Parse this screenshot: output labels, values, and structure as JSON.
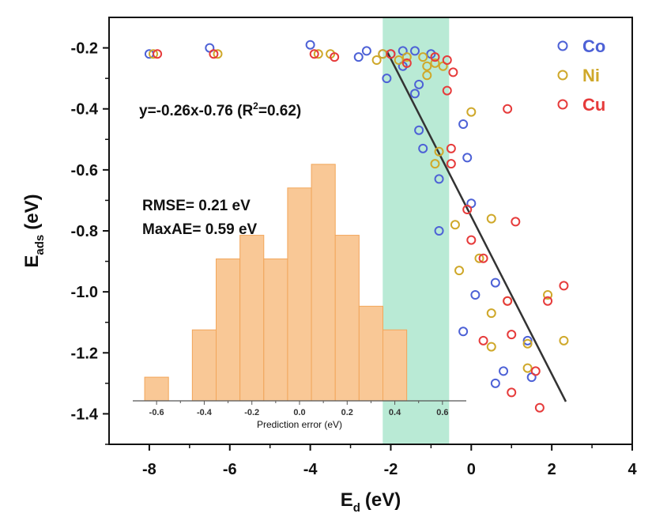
{
  "chart_data": {
    "type": "scatter",
    "xlabel": "E",
    "xlabel_sub": "d",
    "xlabel_unit": "(eV)",
    "ylabel": "E",
    "ylabel_sub": "ads",
    "ylabel_unit": "(eV)",
    "xlim": [
      -9.0,
      4.0
    ],
    "ylim": [
      -1.5,
      -0.1
    ],
    "xticks": [
      -8,
      -6,
      -4,
      -2,
      0,
      2,
      4
    ],
    "yticks": [
      -0.2,
      -0.4,
      -0.6,
      -0.8,
      -1.0,
      -1.2,
      -1.4
    ],
    "xtick_labels": [
      "-8",
      "-6",
      "-4",
      "-2",
      "0",
      "2",
      "4"
    ],
    "ytick_labels": [
      "-0.2",
      "-0.4",
      "-0.6",
      "-0.8",
      "-1.0",
      "-1.2",
      "-1.4"
    ],
    "highlight_band": {
      "x_range": [
        -2.2,
        -0.55
      ],
      "color": "#7fd9b2"
    },
    "fit_line": {
      "label_prefix": "y=-0.26x-0.76 (R",
      "label_sup": "2",
      "label_suffix": "=0.62)",
      "from": [
        -2.1,
        -0.21
      ],
      "to": [
        2.35,
        -1.36
      ],
      "color": "#333333"
    },
    "legend": [
      {
        "name": "Co",
        "color": "#4d61d6"
      },
      {
        "name": "Ni",
        "color": "#cfa82a"
      },
      {
        "name": "Cu",
        "color": "#e63b3b"
      }
    ],
    "series": [
      {
        "name": "Co",
        "color": "#4d61d6",
        "points": [
          [
            -8.0,
            -0.22
          ],
          [
            -6.5,
            -0.2
          ],
          [
            -4.0,
            -0.19
          ],
          [
            -2.8,
            -0.23
          ],
          [
            -2.6,
            -0.21
          ],
          [
            -2.2,
            -0.22
          ],
          [
            -2.0,
            -0.22
          ],
          [
            -1.7,
            -0.21
          ],
          [
            -1.4,
            -0.21
          ],
          [
            -1.0,
            -0.22
          ],
          [
            -2.1,
            -0.3
          ],
          [
            -1.7,
            -0.26
          ],
          [
            -1.3,
            -0.32
          ],
          [
            -1.4,
            -0.35
          ],
          [
            -1.3,
            -0.47
          ],
          [
            -1.2,
            -0.53
          ],
          [
            -0.8,
            -0.63
          ],
          [
            -0.8,
            -0.8
          ],
          [
            -0.2,
            -0.45
          ],
          [
            -0.1,
            -0.56
          ],
          [
            0.0,
            -0.71
          ],
          [
            0.1,
            -1.01
          ],
          [
            -0.2,
            -1.13
          ],
          [
            0.6,
            -0.97
          ],
          [
            0.8,
            -1.26
          ],
          [
            0.6,
            -1.3
          ],
          [
            1.4,
            -1.16
          ],
          [
            1.5,
            -1.28
          ]
        ]
      },
      {
        "name": "Ni",
        "color": "#cfa82a",
        "points": [
          [
            -7.9,
            -0.22
          ],
          [
            -6.3,
            -0.22
          ],
          [
            -3.8,
            -0.22
          ],
          [
            -3.5,
            -0.22
          ],
          [
            -2.35,
            -0.24
          ],
          [
            -2.2,
            -0.22
          ],
          [
            -1.8,
            -0.24
          ],
          [
            -1.6,
            -0.23
          ],
          [
            -1.2,
            -0.23
          ],
          [
            -1.1,
            -0.26
          ],
          [
            -0.9,
            -0.25
          ],
          [
            -0.7,
            -0.26
          ],
          [
            -1.1,
            -0.29
          ],
          [
            -0.9,
            -0.58
          ],
          [
            -0.8,
            -0.54
          ],
          [
            -0.4,
            -0.78
          ],
          [
            -0.3,
            -0.93
          ],
          [
            0.0,
            -0.41
          ],
          [
            0.5,
            -0.76
          ],
          [
            0.2,
            -0.89
          ],
          [
            0.5,
            -1.07
          ],
          [
            0.9,
            -1.03
          ],
          [
            0.5,
            -1.18
          ],
          [
            1.4,
            -1.17
          ],
          [
            1.4,
            -1.25
          ],
          [
            1.9,
            -1.01
          ],
          [
            2.3,
            -1.16
          ]
        ]
      },
      {
        "name": "Cu",
        "color": "#e63b3b",
        "points": [
          [
            -7.8,
            -0.22
          ],
          [
            -6.4,
            -0.22
          ],
          [
            -3.9,
            -0.22
          ],
          [
            -3.4,
            -0.23
          ],
          [
            -2.0,
            -0.22
          ],
          [
            -1.6,
            -0.25
          ],
          [
            -0.9,
            -0.23
          ],
          [
            -0.6,
            -0.24
          ],
          [
            -0.6,
            -0.34
          ],
          [
            -0.45,
            -0.28
          ],
          [
            -0.5,
            -0.53
          ],
          [
            -0.5,
            -0.58
          ],
          [
            -0.1,
            -0.73
          ],
          [
            0.0,
            -0.83
          ],
          [
            0.3,
            -0.89
          ],
          [
            0.3,
            -1.16
          ],
          [
            0.9,
            -0.4
          ],
          [
            1.1,
            -0.77
          ],
          [
            0.9,
            -1.03
          ],
          [
            1.0,
            -1.14
          ],
          [
            1.0,
            -1.33
          ],
          [
            1.6,
            -1.26
          ],
          [
            1.7,
            -1.38
          ],
          [
            1.9,
            -1.03
          ],
          [
            2.3,
            -0.98
          ]
        ]
      }
    ],
    "inset": {
      "type": "bar",
      "xlabel": "Prediction error (eV)",
      "xlim": [
        -0.7,
        0.7
      ],
      "ylim": [
        0,
        12
      ],
      "xticks": [
        -0.6,
        -0.4,
        -0.2,
        0.0,
        0.2,
        0.4,
        0.6
      ],
      "xtick_labels": [
        "-0.6",
        "-0.4",
        "-0.2",
        "0.0",
        "0.2",
        "0.4",
        "0.6"
      ],
      "bin_width": 0.1,
      "bins": [
        {
          "center": -0.6,
          "count": 1
        },
        {
          "center": -0.4,
          "count": 3
        },
        {
          "center": -0.3,
          "count": 6
        },
        {
          "center": -0.2,
          "count": 7
        },
        {
          "center": -0.1,
          "count": 6
        },
        {
          "center": 0.0,
          "count": 9
        },
        {
          "center": 0.1,
          "count": 10
        },
        {
          "center": 0.2,
          "count": 7
        },
        {
          "center": 0.3,
          "count": 4
        },
        {
          "center": 0.4,
          "count": 3
        }
      ],
      "bar_color": "#f9c896",
      "bar_edge": "#f2a65a",
      "rmse_label": "RMSE= 0.21 eV",
      "maxae_label": "MaxAE= 0.59 eV"
    }
  }
}
